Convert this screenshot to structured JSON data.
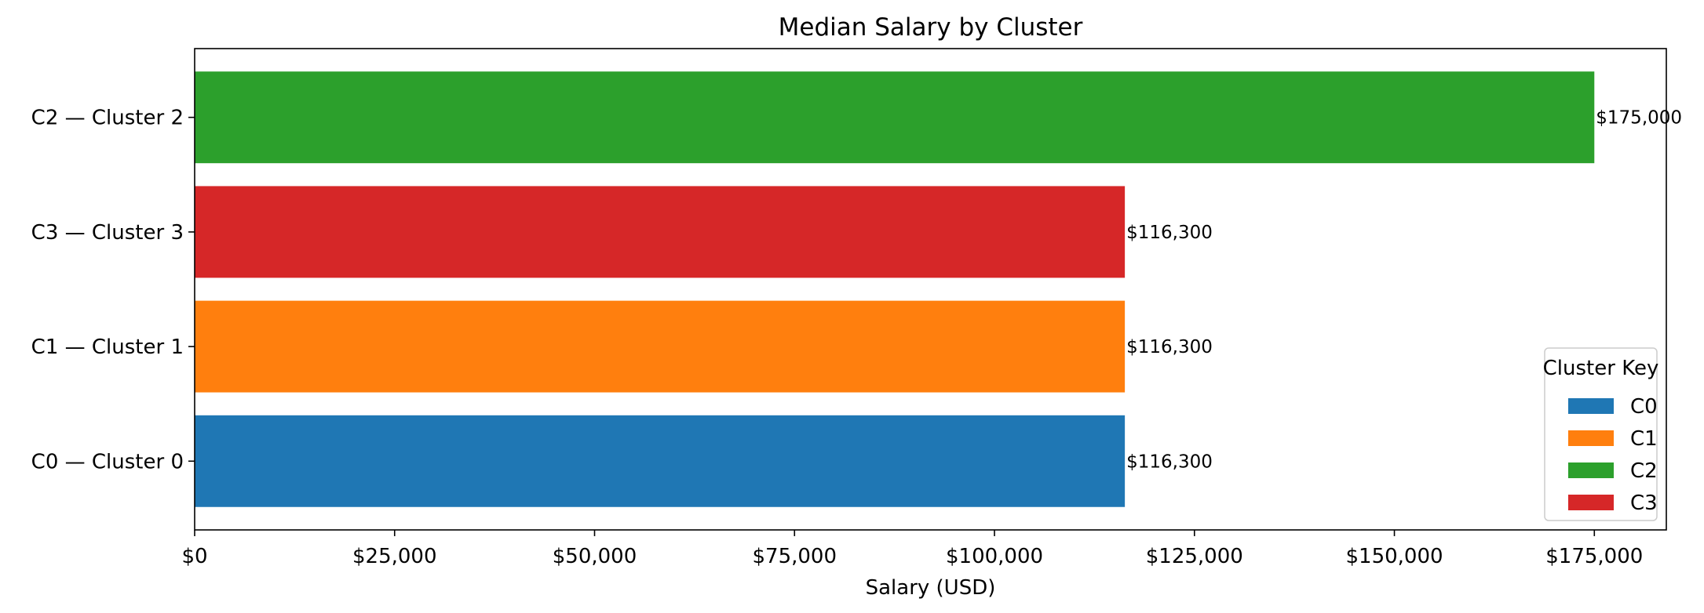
{
  "chart_data": {
    "type": "bar",
    "orientation": "horizontal",
    "title": "Median Salary by Cluster",
    "xlabel": "Salary (USD)",
    "ylabel": "",
    "xlim": [
      0,
      184000
    ],
    "x_ticks": [
      0,
      25000,
      50000,
      75000,
      100000,
      125000,
      150000,
      175000
    ],
    "x_tick_labels": [
      "$0",
      "$25,000",
      "$50,000",
      "$75,000",
      "$100,000",
      "$125,000",
      "$150,000",
      "$175,000"
    ],
    "categories": [
      "C0 — Cluster 0",
      "C1 — Cluster 1",
      "C3 — Cluster 3",
      "C2 — Cluster 2"
    ],
    "values": [
      116300,
      116300,
      116300,
      175000
    ],
    "value_labels": [
      "$116,300",
      "$116,300",
      "$116,300",
      "$175,000"
    ],
    "bar_colors": [
      "#1f77b4",
      "#ff7f0e",
      "#d62728",
      "#2ca02c"
    ],
    "grid": false,
    "legend": {
      "title": "Cluster Key",
      "placement": "lower-right",
      "entries": [
        {
          "label": "C0",
          "color": "#1f77b4"
        },
        {
          "label": "C1",
          "color": "#ff7f0e"
        },
        {
          "label": "C2",
          "color": "#2ca02c"
        },
        {
          "label": "C3",
          "color": "#d62728"
        }
      ]
    }
  }
}
